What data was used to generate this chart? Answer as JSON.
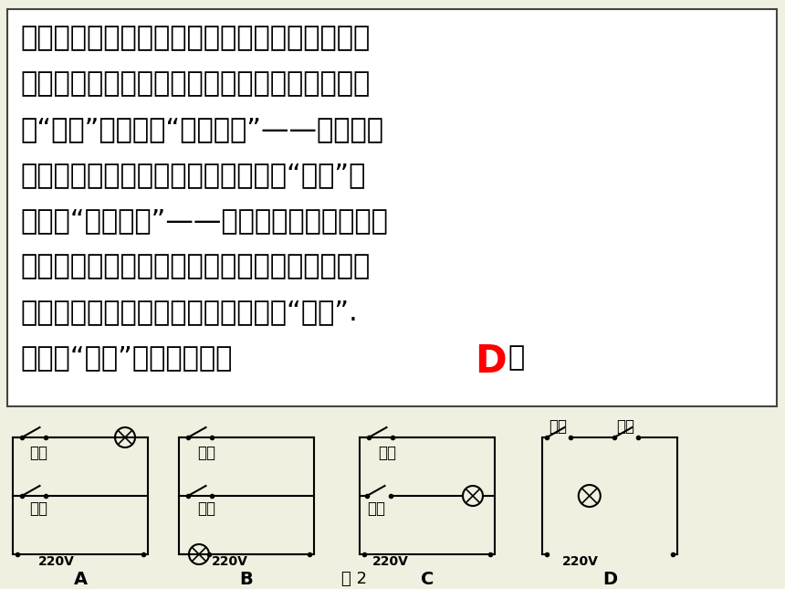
{
  "bg_color": "#f0f0e0",
  "text_box_color": "#ffffff",
  "text_color": "#000000",
  "answer_color": "#ff0000",
  "answer_text": "D",
  "diagram_label": "图 2",
  "circuit_labels": [
    "A",
    "B",
    "C",
    "D"
  ],
  "font_size_main": 22,
  "font_size_circuit": 12,
  "font_size_answer": 30
}
